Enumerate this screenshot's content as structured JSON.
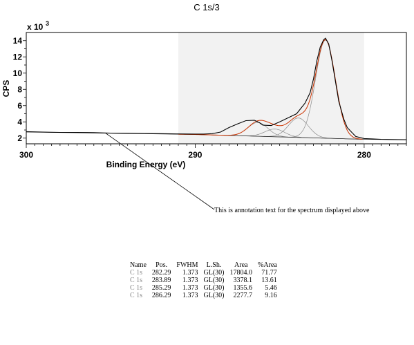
{
  "chart_data": {
    "type": "line",
    "title": "C 1s/3",
    "xlabel": "Binding Energy (eV)",
    "ylabel": "CPS",
    "y_multiplier": "x 10",
    "y_multiplier_exp": "3",
    "xlim": [
      300,
      277.5
    ],
    "ylim": [
      1.3,
      15
    ],
    "x_reversed": true,
    "x_ticks": [
      300,
      290,
      280
    ],
    "y_ticks": [
      2,
      4,
      6,
      8,
      10,
      12,
      14
    ],
    "fit_region": [
      291,
      280
    ],
    "background": {
      "x": [
        300,
        290,
        280,
        277.5
      ],
      "y": [
        2.75,
        2.45,
        1.85,
        1.8
      ]
    },
    "spectrum": {
      "name": "measured",
      "x": [
        300,
        299,
        298,
        297,
        296,
        295,
        294,
        293,
        292,
        291,
        290,
        289.5,
        289,
        288.5,
        288,
        287.5,
        287,
        286.5,
        286.2,
        286,
        285.5,
        285,
        284.5,
        284,
        283.5,
        283.2,
        283,
        282.8,
        282.6,
        282.4,
        282.29,
        282.1,
        281.9,
        281.7,
        281.5,
        281.2,
        281,
        280.5,
        280,
        279.5,
        279,
        278,
        277.5
      ],
      "y": [
        2.8,
        2.75,
        2.7,
        2.7,
        2.68,
        2.62,
        2.6,
        2.58,
        2.55,
        2.52,
        2.5,
        2.5,
        2.55,
        2.75,
        3.3,
        3.75,
        4.15,
        4.2,
        3.9,
        3.6,
        3.55,
        4.0,
        4.5,
        5.0,
        6.3,
        7.6,
        9.3,
        11.5,
        13.2,
        14.1,
        14.3,
        13.6,
        11.5,
        9.0,
        6.5,
        4.3,
        3.3,
        2.2,
        1.95,
        1.9,
        1.85,
        1.82,
        1.8
      ]
    },
    "components": [
      {
        "name": "C 1s",
        "position": 282.29,
        "fwhm": 1.373,
        "height": 12.1
      },
      {
        "name": "C 1s",
        "position": 283.89,
        "fwhm": 1.373,
        "height": 2.4
      },
      {
        "name": "C 1s",
        "position": 285.29,
        "fwhm": 1.373,
        "height": 0.95
      },
      {
        "name": "C 1s",
        "position": 286.29,
        "fwhm": 1.373,
        "height": 1.7
      }
    ],
    "annotation": {
      "text": "This is annotation text for the spectrum displayed above",
      "points_to_x": 295.3
    },
    "colors": {
      "spectrum": "#000000",
      "envelope": "#cc3300",
      "component": "#8a8a8a",
      "region": "#f2f2f2"
    }
  },
  "table": {
    "headers": [
      "Name",
      "Pos.",
      "FWHM",
      "L.Sh.",
      "Area",
      "%Area"
    ],
    "rows": [
      [
        "C 1s",
        "282.29",
        "1.373",
        "GL(30)",
        "17804.0",
        "71.77"
      ],
      [
        "C 1s",
        "283.89",
        "1.373",
        "GL(30)",
        "3378.1",
        "13.61"
      ],
      [
        "C 1s",
        "285.29",
        "1.373",
        "GL(30)",
        "1355.6",
        "5.46"
      ],
      [
        "C 1s",
        "286.29",
        "1.373",
        "GL(30)",
        "2277.7",
        "9.16"
      ]
    ]
  }
}
